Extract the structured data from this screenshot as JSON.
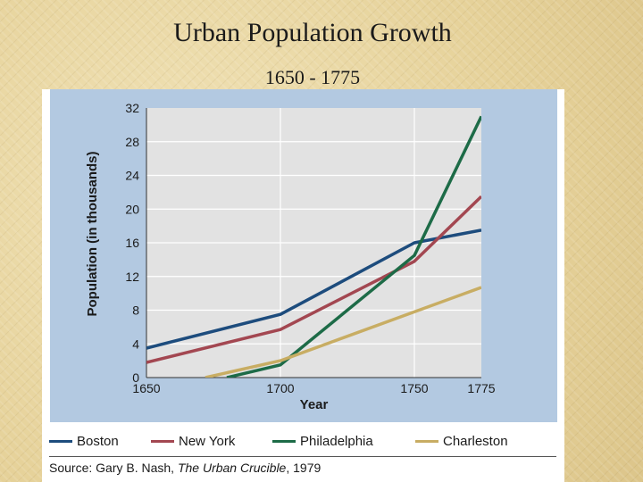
{
  "slide": {
    "title": "Urban Population Growth",
    "subtitle": "1650 - 1775"
  },
  "source": {
    "prefix": "Source: Gary B. Nash, ",
    "work": "The Urban Crucible",
    "suffix": ", 1979"
  },
  "chart_data": {
    "type": "line",
    "title": "",
    "xlabel": "Year",
    "ylabel": "Population (in thousands)",
    "xlim": [
      1650,
      1775
    ],
    "ylim": [
      0,
      32
    ],
    "xticks": [
      1650,
      1700,
      1750,
      1775
    ],
    "yticks": [
      0,
      4,
      8,
      12,
      16,
      20,
      24,
      28,
      32
    ],
    "grid": true,
    "legend_position": "bottom",
    "series": [
      {
        "name": "Boston",
        "color": "#1d4c7d",
        "x": [
          1650,
          1700,
          1750,
          1775
        ],
        "y": [
          3.5,
          7.5,
          16,
          17.5
        ]
      },
      {
        "name": "New York",
        "color": "#a34751",
        "x": [
          1650,
          1700,
          1750,
          1775
        ],
        "y": [
          1.8,
          5.7,
          13.8,
          21.5
        ]
      },
      {
        "name": "Philadelphia",
        "color": "#1d6b47",
        "x": [
          1680,
          1700,
          1750,
          1775
        ],
        "y": [
          0,
          1.5,
          14.5,
          31
        ]
      },
      {
        "name": "Charleston",
        "color": "#c8ad63",
        "x": [
          1672,
          1700,
          1775
        ],
        "y": [
          0,
          2,
          10.7
        ]
      }
    ]
  }
}
